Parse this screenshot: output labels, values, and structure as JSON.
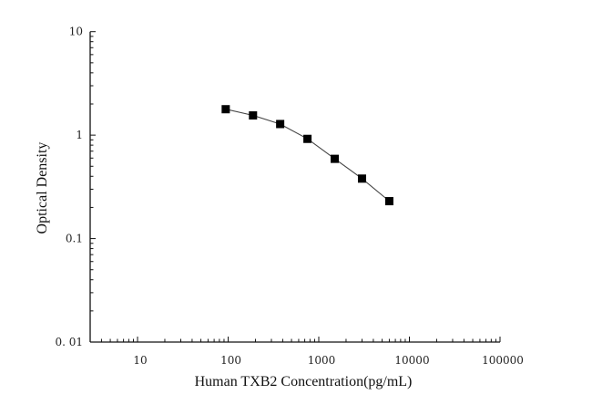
{
  "chart_data": {
    "type": "scatter",
    "xlabel": "Human TXB2 Concentration(pg/mL)",
    "ylabel": "Optical Density",
    "x_scale": "log",
    "y_scale": "log",
    "xlim": [
      3,
      100000
    ],
    "ylim": [
      0.01,
      10
    ],
    "x_ticks": [
      10,
      100,
      1000,
      10000,
      100000
    ],
    "x_tick_labels": [
      "10",
      "100",
      "1000",
      "10000",
      "100000"
    ],
    "y_ticks": [
      10,
      1,
      0.1,
      0.01
    ],
    "y_tick_labels": [
      "10",
      "1",
      "0.1",
      "0. 01"
    ],
    "grid": false,
    "series": [
      {
        "marker": "square",
        "connected": true,
        "color": "#000000",
        "line_color": "#444444",
        "x": [
          94,
          188,
          375,
          750,
          1500,
          3000,
          6000
        ],
        "y": [
          1.78,
          1.55,
          1.28,
          0.92,
          0.59,
          0.38,
          0.23
        ]
      }
    ]
  }
}
